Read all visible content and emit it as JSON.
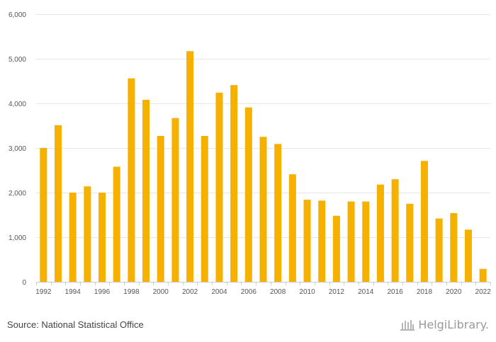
{
  "chart_data": {
    "type": "bar",
    "categories": [
      "1992",
      "1993",
      "1994",
      "1995",
      "1996",
      "1997",
      "1998",
      "1999",
      "2000",
      "2001",
      "2002",
      "2003",
      "2004",
      "2005",
      "2006",
      "2007",
      "2008",
      "2009",
      "2010",
      "2011",
      "2012",
      "2013",
      "2014",
      "2015",
      "2016",
      "2017",
      "2018",
      "2019",
      "2020",
      "2021",
      "2022"
    ],
    "values": [
      3000,
      3510,
      2000,
      2140,
      2000,
      2580,
      4560,
      4080,
      3270,
      3670,
      5170,
      3270,
      4240,
      4410,
      3910,
      3250,
      3090,
      2410,
      1840,
      1820,
      1480,
      1800,
      1800,
      2180,
      2300,
      1750,
      2710,
      1420,
      1540,
      1170,
      290
    ],
    "x_tick_labels": [
      "1992",
      "1994",
      "1996",
      "1998",
      "2000",
      "2002",
      "2004",
      "2006",
      "2008",
      "2010",
      "2012",
      "2014",
      "2016",
      "2018",
      "2020",
      "2022"
    ],
    "y_ticks": [
      0,
      1000,
      2000,
      3000,
      4000,
      5000,
      6000
    ],
    "y_tick_labels": [
      "0",
      "1,000",
      "2,000",
      "3,000",
      "4,000",
      "5,000",
      "6,000"
    ],
    "ylim": [
      0,
      6000
    ],
    "grid": true,
    "bar_color": "#f5b000",
    "title": "",
    "xlabel": "",
    "ylabel": ""
  },
  "footer": {
    "source": "Source: National Statistical Office",
    "logo_text": "HelgiLibrary.",
    "logo_icon": "building-icon"
  }
}
